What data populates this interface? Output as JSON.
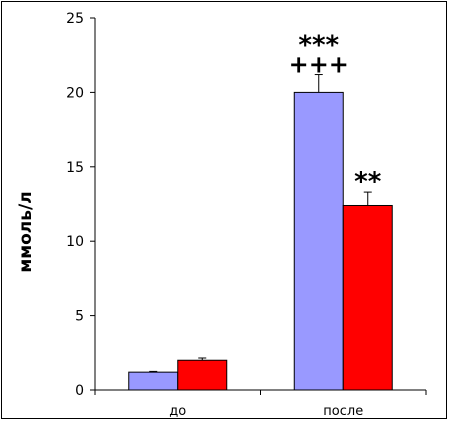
{
  "chart_data": {
    "type": "bar",
    "title": "",
    "xlabel": "",
    "ylabel": "ммоль/л",
    "ylim": [
      0,
      25
    ],
    "yticks": [
      0,
      5,
      10,
      15,
      20,
      25
    ],
    "categories": [
      "до",
      "после"
    ],
    "series": [
      {
        "color": "#9999ff",
        "values": [
          1.2,
          20.0
        ],
        "errors": [
          0.05,
          1.2
        ]
      },
      {
        "color": "#ff0000",
        "values": [
          2.0,
          12.4
        ],
        "errors": [
          0.15,
          0.9
        ]
      }
    ],
    "annotations": [
      {
        "category": 1,
        "series": 0,
        "lines": [
          "***",
          "+++"
        ]
      },
      {
        "category": 1,
        "series": 1,
        "lines": [
          "**"
        ]
      }
    ],
    "grid": false,
    "legend": "none"
  }
}
